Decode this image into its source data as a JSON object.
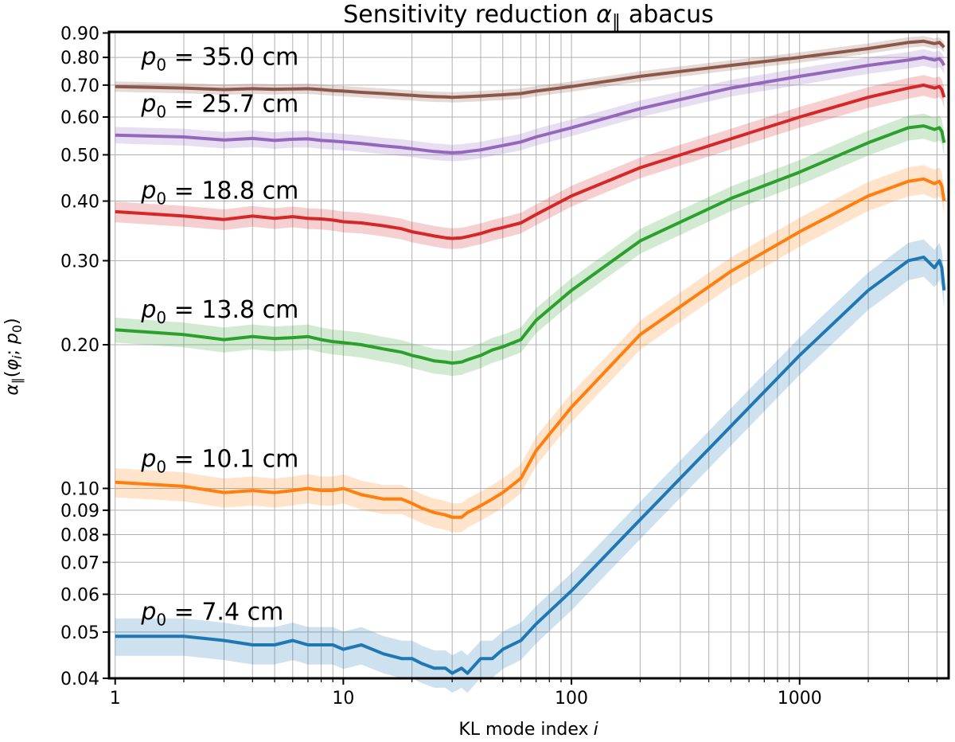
{
  "chart_data": {
    "type": "line",
    "title_text": "Sensitivity reduction",
    "title_symbol": "α",
    "title_subscript": "∥",
    "title_suffix": "abacus",
    "title": "Sensitivity reduction α∥ abacus",
    "xlabel_text": "KL mode index",
    "xlabel_var": "i",
    "xlabel": "KL mode index i",
    "ylabel": "α∥(φi; p0)",
    "ylabel_parts": {
      "alpha": "α",
      "sub": "∥",
      "open": "(",
      "phi": "φ",
      "phi_sub": "i",
      "sep": "; ",
      "p": "p",
      "p_sub": "0",
      "close": ")"
    },
    "xscale": "log",
    "yscale": "log",
    "xlim": [
      0.94,
      4500
    ],
    "ylim": [
      0.04,
      0.905
    ],
    "x_ticks": [
      1,
      10,
      100,
      1000
    ],
    "x_tick_labels": [
      "1",
      "10",
      "100",
      "1000"
    ],
    "y_ticks": [
      0.04,
      0.05,
      0.06,
      0.07,
      0.08,
      0.09,
      0.1,
      0.2,
      0.3,
      0.4,
      0.5,
      0.6,
      0.7,
      0.8,
      0.9
    ],
    "y_tick_labels": [
      "0.04",
      "0.05",
      "0.06",
      "0.07",
      "0.08",
      "0.09",
      "0.10",
      "0.20",
      "0.30",
      "0.40",
      "0.50",
      "0.60",
      "0.70",
      "0.80",
      "0.90"
    ],
    "grid": true,
    "series": [
      {
        "name": "p0 = 7.4 cm",
        "label_prefix": "p",
        "label_sub": "0",
        "label_value": " = 7.4 cm",
        "label_anchor": [
          1.3,
          0.053
        ],
        "color": "#1f77b4",
        "band": 0.09,
        "x": [
          1,
          2,
          3,
          4,
          5,
          6,
          7,
          8,
          9,
          10,
          12,
          15,
          18,
          20,
          22,
          25,
          28,
          30,
          33,
          35,
          40,
          45,
          50,
          60,
          70,
          100,
          200,
          500,
          1000,
          2000,
          3000,
          3500,
          3900,
          4100,
          4200,
          4300
        ],
        "y": [
          0.049,
          0.049,
          0.048,
          0.047,
          0.047,
          0.048,
          0.047,
          0.047,
          0.047,
          0.046,
          0.047,
          0.045,
          0.044,
          0.044,
          0.043,
          0.042,
          0.042,
          0.041,
          0.042,
          0.041,
          0.044,
          0.044,
          0.046,
          0.048,
          0.052,
          0.061,
          0.086,
          0.135,
          0.19,
          0.26,
          0.3,
          0.305,
          0.29,
          0.3,
          0.29,
          0.26
        ]
      },
      {
        "name": "p0 = 10.1 cm",
        "label_prefix": "p",
        "label_sub": "0",
        "label_value": " = 10.1 cm",
        "label_anchor": [
          1.3,
          0.111
        ],
        "color": "#ff7f0e",
        "band": 0.07,
        "x": [
          1,
          2,
          3,
          4,
          5,
          6,
          7,
          8,
          9,
          10,
          12,
          15,
          18,
          20,
          22,
          25,
          28,
          30,
          33,
          35,
          40,
          45,
          50,
          60,
          70,
          100,
          200,
          500,
          1000,
          2000,
          3000,
          3500,
          3900,
          4100,
          4200,
          4300
        ],
        "y": [
          0.103,
          0.101,
          0.098,
          0.099,
          0.098,
          0.099,
          0.1,
          0.099,
          0.099,
          0.1,
          0.097,
          0.095,
          0.095,
          0.093,
          0.091,
          0.089,
          0.088,
          0.087,
          0.087,
          0.089,
          0.092,
          0.095,
          0.098,
          0.105,
          0.12,
          0.148,
          0.21,
          0.285,
          0.345,
          0.41,
          0.44,
          0.445,
          0.435,
          0.44,
          0.43,
          0.4
        ]
      },
      {
        "name": "p0 = 13.8 cm",
        "label_prefix": "p",
        "label_sub": "0",
        "label_value": " = 13.8 cm",
        "label_anchor": [
          1.3,
          0.228
        ],
        "color": "#2ca02c",
        "band": 0.06,
        "x": [
          1,
          2,
          3,
          4,
          5,
          6,
          7,
          8,
          9,
          10,
          12,
          15,
          18,
          20,
          22,
          25,
          28,
          30,
          33,
          35,
          40,
          45,
          50,
          60,
          70,
          100,
          200,
          500,
          1000,
          2000,
          3000,
          3500,
          3900,
          4100,
          4200,
          4300
        ],
        "y": [
          0.215,
          0.21,
          0.205,
          0.208,
          0.206,
          0.207,
          0.208,
          0.205,
          0.203,
          0.202,
          0.2,
          0.196,
          0.193,
          0.19,
          0.188,
          0.185,
          0.184,
          0.183,
          0.184,
          0.186,
          0.19,
          0.195,
          0.198,
          0.205,
          0.225,
          0.26,
          0.33,
          0.405,
          0.46,
          0.53,
          0.57,
          0.575,
          0.565,
          0.57,
          0.56,
          0.53
        ]
      },
      {
        "name": "p0 = 18.8 cm",
        "label_prefix": "p",
        "label_sub": "0",
        "label_value": " = 18.8 cm",
        "label_anchor": [
          1.3,
          0.405
        ],
        "color": "#d62728",
        "band": 0.05,
        "x": [
          1,
          2,
          3,
          4,
          5,
          6,
          7,
          8,
          9,
          10,
          12,
          15,
          18,
          20,
          22,
          25,
          28,
          30,
          33,
          35,
          40,
          45,
          50,
          60,
          70,
          100,
          200,
          500,
          1000,
          2000,
          3000,
          3500,
          3900,
          4100,
          4200,
          4300
        ],
        "y": [
          0.38,
          0.372,
          0.366,
          0.372,
          0.368,
          0.371,
          0.368,
          0.367,
          0.365,
          0.362,
          0.36,
          0.355,
          0.35,
          0.345,
          0.342,
          0.338,
          0.335,
          0.334,
          0.335,
          0.337,
          0.342,
          0.348,
          0.352,
          0.36,
          0.375,
          0.41,
          0.47,
          0.54,
          0.6,
          0.66,
          0.69,
          0.7,
          0.69,
          0.695,
          0.685,
          0.66
        ]
      },
      {
        "name": "p0 = 25.7 cm",
        "label_prefix": "p",
        "label_sub": "0",
        "label_value": " = 25.7 cm",
        "label_anchor": [
          1.3,
          0.615
        ],
        "color": "#9467bd",
        "band": 0.04,
        "x": [
          1,
          2,
          3,
          4,
          5,
          6,
          7,
          8,
          9,
          10,
          12,
          15,
          18,
          20,
          22,
          25,
          28,
          30,
          33,
          35,
          40,
          45,
          50,
          60,
          70,
          100,
          200,
          500,
          1000,
          2000,
          3000,
          3500,
          3900,
          4100,
          4200,
          4300
        ],
        "y": [
          0.55,
          0.545,
          0.537,
          0.541,
          0.536,
          0.539,
          0.54,
          0.536,
          0.534,
          0.532,
          0.528,
          0.522,
          0.518,
          0.515,
          0.512,
          0.508,
          0.506,
          0.505,
          0.506,
          0.508,
          0.512,
          0.518,
          0.523,
          0.532,
          0.545,
          0.57,
          0.625,
          0.69,
          0.73,
          0.77,
          0.79,
          0.8,
          0.79,
          0.795,
          0.785,
          0.77
        ]
      },
      {
        "name": "p0 = 35.0 cm",
        "label_prefix": "p",
        "label_sub": "0",
        "label_value": " = 35.0 cm",
        "label_anchor": [
          1.3,
          0.772
        ],
        "color": "#8c564b",
        "band": 0.025,
        "x": [
          1,
          2,
          3,
          4,
          5,
          6,
          7,
          8,
          9,
          10,
          12,
          15,
          18,
          20,
          22,
          25,
          28,
          30,
          33,
          35,
          40,
          45,
          50,
          60,
          70,
          100,
          200,
          500,
          1000,
          2000,
          3000,
          3500,
          3900,
          4100,
          4200,
          4300
        ],
        "y": [
          0.695,
          0.69,
          0.685,
          0.688,
          0.686,
          0.687,
          0.688,
          0.685,
          0.682,
          0.68,
          0.676,
          0.672,
          0.668,
          0.666,
          0.664,
          0.662,
          0.661,
          0.66,
          0.661,
          0.662,
          0.664,
          0.666,
          0.668,
          0.672,
          0.68,
          0.695,
          0.73,
          0.77,
          0.8,
          0.835,
          0.86,
          0.865,
          0.855,
          0.86,
          0.85,
          0.84
        ]
      }
    ]
  }
}
